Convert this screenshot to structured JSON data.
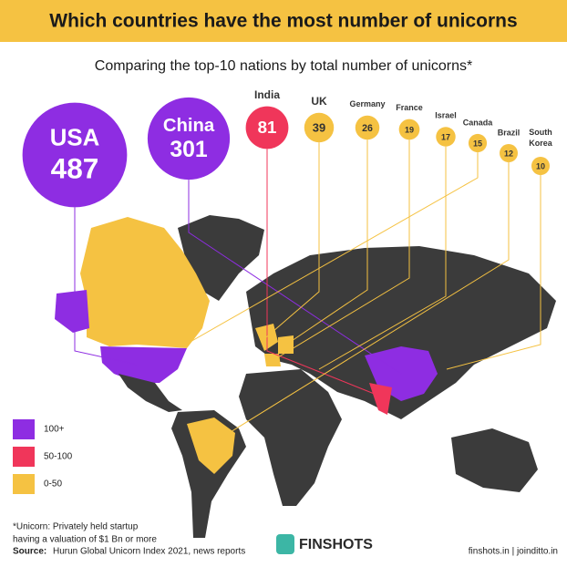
{
  "chart_data": {
    "type": "bubble",
    "title": "Which countries have the most number of unicorns",
    "subtitle": "Comparing the top-10 nations by total number of unicorns*",
    "categories": [
      "USA",
      "China",
      "India",
      "UK",
      "Germany",
      "France",
      "Israel",
      "Canada",
      "Brazil",
      "South Korea"
    ],
    "values": [
      487,
      301,
      81,
      39,
      26,
      19,
      17,
      15,
      12,
      10
    ],
    "colors": [
      "#8e2de2",
      "#8e2de2",
      "#f0365a",
      "#f5c242",
      "#f5c242",
      "#f5c242",
      "#f5c242",
      "#f5c242",
      "#f5c242",
      "#f5c242"
    ],
    "legend": [
      {
        "label": "100+",
        "color": "#8e2de2"
      },
      {
        "label": "50-100",
        "color": "#f0365a"
      },
      {
        "label": "0-50",
        "color": "#f5c242"
      }
    ],
    "footnote": [
      "*Unicorn: Privately held startup",
      "having a valuation of $1 Bn or more"
    ],
    "source_label": "Source:",
    "source": "Hurun Global Unicorn Index 2021, news reports",
    "brand": "FINSHOTS",
    "website": "finshots.in | joinditto.in"
  }
}
